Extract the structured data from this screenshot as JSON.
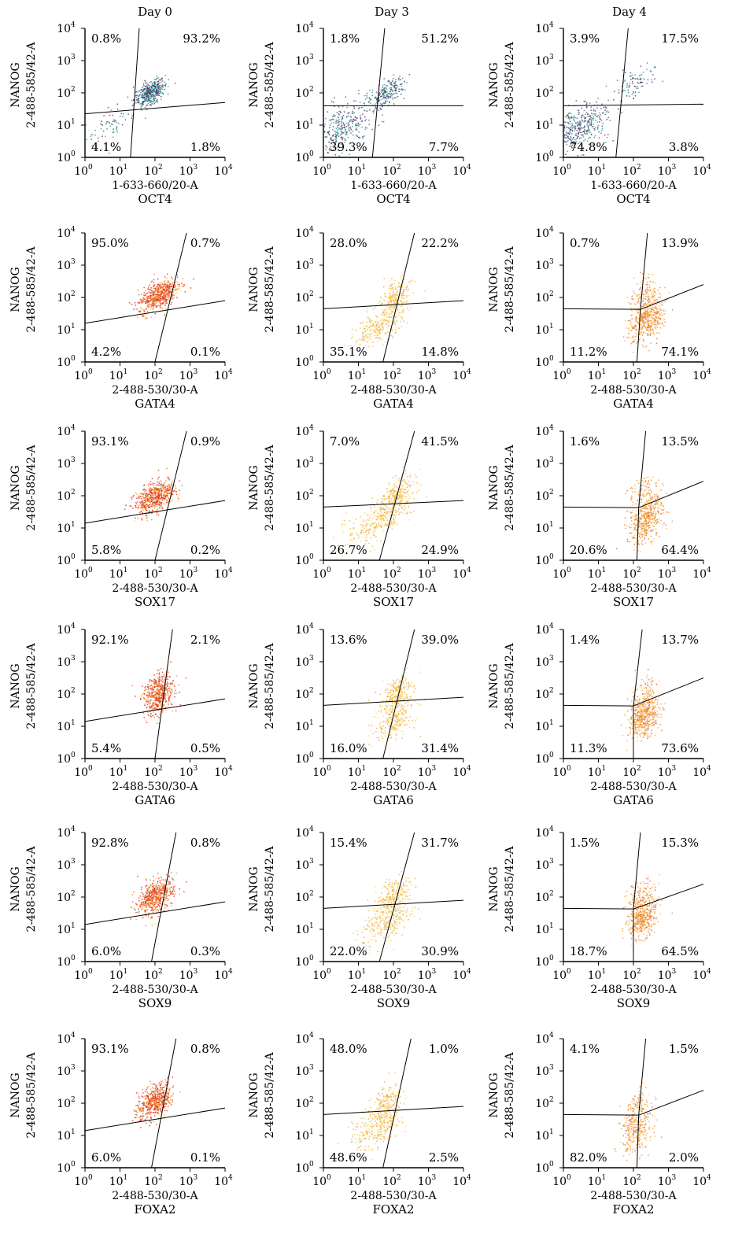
{
  "chart_data": {
    "type": "scatter",
    "layout": "grid of flow-cytometry density plots, 6 rows x 3 columns",
    "columns": [
      "Day 0",
      "Day 3",
      "Day 4"
    ],
    "y_axis": {
      "label_line1": "NANOG",
      "label_line2": "2-488-585/42-A",
      "scale": "log",
      "range": [
        1,
        10000
      ]
    },
    "x_axis": {
      "scale": "log",
      "range": [
        1,
        10000
      ]
    },
    "tick_labels": [
      "10",
      "10",
      "10",
      "10",
      "10"
    ],
    "tick_exponents": [
      "0",
      "1",
      "2",
      "3",
      "4"
    ],
    "rows": [
      {
        "marker": "OCT4",
        "x_channel": "1-633-660/20-A",
        "panels": [
          {
            "day": "Day 0",
            "quadrants": {
              "upper_left": "0.8%",
              "upper_right": "93.2%",
              "lower_left": "4.1%",
              "lower_right": "1.8%"
            }
          },
          {
            "day": "Day 3",
            "quadrants": {
              "upper_left": "1.8%",
              "upper_right": "51.2%",
              "lower_left": "39.3%",
              "lower_right": "7.7%"
            }
          },
          {
            "day": "Day 4",
            "quadrants": {
              "upper_left": "3.9%",
              "upper_right": "17.5%",
              "lower_left": "74.8%",
              "lower_right": "3.8%"
            }
          }
        ]
      },
      {
        "marker": "GATA4",
        "x_channel": "2-488-530/30-A",
        "panels": [
          {
            "day": "Day 0",
            "quadrants": {
              "upper_left": "95.0%",
              "upper_right": "0.7%",
              "lower_left": "4.2%",
              "lower_right": "0.1%"
            }
          },
          {
            "day": "Day 3",
            "quadrants": {
              "upper_left": "28.0%",
              "upper_right": "22.2%",
              "lower_left": "35.1%",
              "lower_right": "14.8%"
            }
          },
          {
            "day": "Day 4",
            "quadrants": {
              "upper_left": "0.7%",
              "upper_right": "13.9%",
              "lower_left": "11.2%",
              "lower_right": "74.1%"
            }
          }
        ]
      },
      {
        "marker": "SOX17",
        "x_channel": "2-488-530/30-A",
        "panels": [
          {
            "day": "Day 0",
            "quadrants": {
              "upper_left": "93.1%",
              "upper_right": "0.9%",
              "lower_left": "5.8%",
              "lower_right": "0.2%"
            }
          },
          {
            "day": "Day 3",
            "quadrants": {
              "upper_left": "7.0%",
              "upper_right": "41.5%",
              "lower_left": "26.7%",
              "lower_right": "24.9%"
            }
          },
          {
            "day": "Day 4",
            "quadrants": {
              "upper_left": "1.6%",
              "upper_right": "13.5%",
              "lower_left": "20.6%",
              "lower_right": "64.4%"
            }
          }
        ]
      },
      {
        "marker": "GATA6",
        "x_channel": "2-488-530/30-A",
        "panels": [
          {
            "day": "Day 0",
            "quadrants": {
              "upper_left": "92.1%",
              "upper_right": "2.1%",
              "lower_left": "5.4%",
              "lower_right": "0.5%"
            }
          },
          {
            "day": "Day 3",
            "quadrants": {
              "upper_left": "13.6%",
              "upper_right": "39.0%",
              "lower_left": "16.0%",
              "lower_right": "31.4%"
            }
          },
          {
            "day": "Day 4",
            "quadrants": {
              "upper_left": "1.4%",
              "upper_right": "13.7%",
              "lower_left": "11.3%",
              "lower_right": "73.6%"
            }
          }
        ]
      },
      {
        "marker": "SOX9",
        "x_channel": "2-488-530/30-A",
        "panels": [
          {
            "day": "Day 0",
            "quadrants": {
              "upper_left": "92.8%",
              "upper_right": "0.8%",
              "lower_left": "6.0%",
              "lower_right": "0.3%"
            }
          },
          {
            "day": "Day 3",
            "quadrants": {
              "upper_left": "15.4%",
              "upper_right": "31.7%",
              "lower_left": "22.0%",
              "lower_right": "30.9%"
            }
          },
          {
            "day": "Day 4",
            "quadrants": {
              "upper_left": "1.5%",
              "upper_right": "15.3%",
              "lower_left": "18.7%",
              "lower_right": "64.5%"
            }
          }
        ]
      },
      {
        "marker": "FOXA2",
        "x_channel": "2-488-530/30-A",
        "panels": [
          {
            "day": "Day 0",
            "quadrants": {
              "upper_left": "93.1%",
              "upper_right": "0.8%",
              "lower_left": "6.0%",
              "lower_right": "0.1%"
            }
          },
          {
            "day": "Day 3",
            "quadrants": {
              "upper_left": "48.0%",
              "upper_right": "1.0%",
              "lower_left": "48.6%",
              "lower_right": "2.5%"
            }
          },
          {
            "day": "Day 4",
            "quadrants": {
              "upper_left": "4.1%",
              "upper_right": "1.5%",
              "lower_left": "82.0%",
              "lower_right": "2.0%"
            }
          }
        ]
      }
    ],
    "point_colors": {
      "oct4_row": [
        "#4a2f6e",
        "#1a8a8a",
        "#2aa36a",
        "#7a3d7a"
      ],
      "day0_rows": [
        "#e0281e",
        "#f06a1e",
        "#f2a31a",
        "#f5c64a"
      ],
      "day3_rows": [
        "#f3b43a",
        "#f7cf6a",
        "#e8a020",
        "#f9dd8c"
      ],
      "day4_rows": [
        "#f08c2a",
        "#f4b04a",
        "#e0602a",
        "#f8c87a"
      ]
    }
  }
}
